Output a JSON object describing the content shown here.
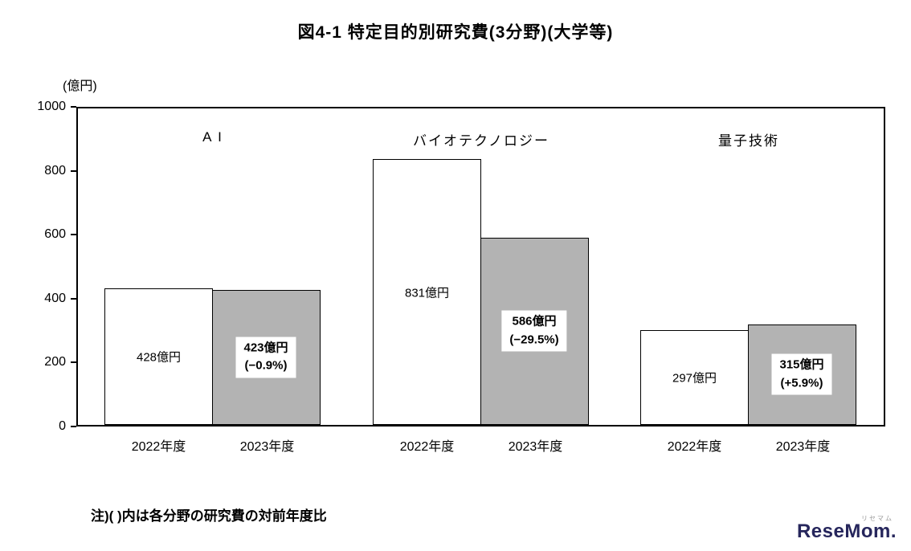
{
  "title": "図4-1 特定目的別研究費(3分野)(大学等)",
  "y_axis_unit": "(億円)",
  "note": "注)( )内は各分野の研究費の対前年度比",
  "watermark": {
    "furigana": "リセマム",
    "text": "ReseMom."
  },
  "chart_data": {
    "type": "bar",
    "title": "図4-1 特定目的別研究費(3分野)(大学等)",
    "ylabel": "億円",
    "xlabel": "",
    "ylim": [
      0,
      1000
    ],
    "yticks": [
      0,
      200,
      400,
      600,
      800,
      1000
    ],
    "grid": false,
    "legend_position": "none",
    "bar_colors": {
      "2022年度": "#ffffff",
      "2023年度": "#b3b3b3"
    },
    "categories": [
      "2022年度",
      "2023年度"
    ],
    "groups": [
      {
        "name": "A I",
        "bars": [
          {
            "year": "2022年度",
            "value": 428,
            "label": "428億円"
          },
          {
            "year": "2023年度",
            "value": 423,
            "label": "423億円",
            "change": "(−0.9%)"
          }
        ]
      },
      {
        "name": "バイオテクノロジー",
        "bars": [
          {
            "year": "2022年度",
            "value": 831,
            "label": "831億円"
          },
          {
            "year": "2023年度",
            "value": 586,
            "label": "586億円",
            "change": "(−29.5%)"
          }
        ]
      },
      {
        "name": "量子技術",
        "bars": [
          {
            "year": "2022年度",
            "value": 297,
            "label": "297億円"
          },
          {
            "year": "2023年度",
            "value": 315,
            "label": "315億円",
            "change": "(+5.9%)"
          }
        ]
      }
    ]
  }
}
